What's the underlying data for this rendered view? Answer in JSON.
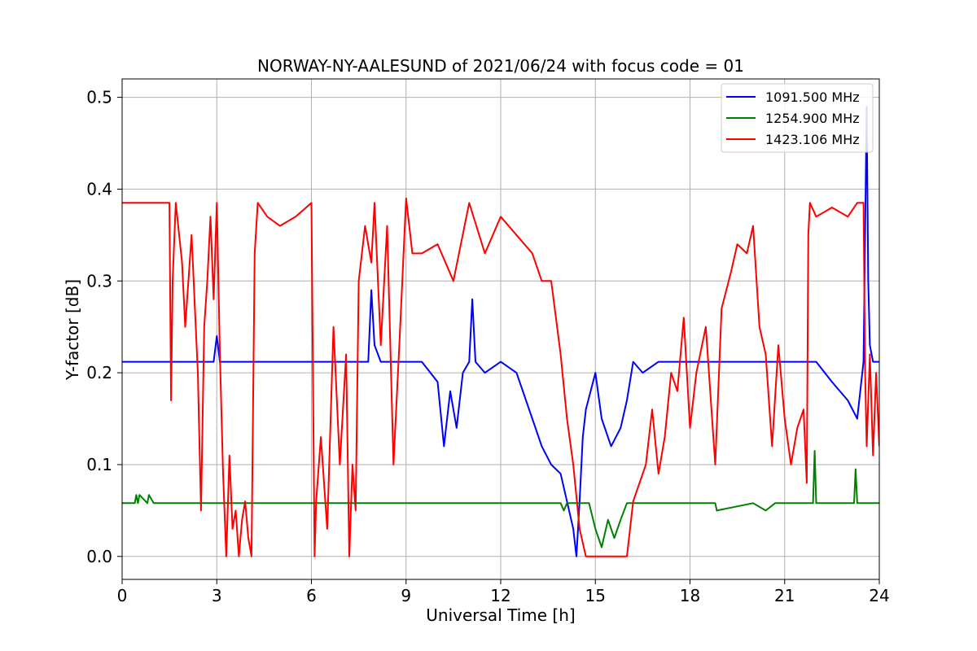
{
  "chart_data": {
    "type": "line",
    "title": "NORWAY-NY-AALESUND of 2021/06/24 with focus code = 01",
    "xlabel": "Universal Time [h]",
    "ylabel": "Y-factor [dB]",
    "xlim": [
      0,
      24
    ],
    "ylim": [
      -0.025,
      0.52
    ],
    "x_ticks": [
      0,
      3,
      6,
      9,
      12,
      15,
      18,
      21,
      24
    ],
    "y_ticks": [
      0.0,
      0.1,
      0.2,
      0.3,
      0.4,
      0.5
    ],
    "x_tick_labels": [
      "0",
      "3",
      "6",
      "9",
      "12",
      "15",
      "18",
      "21",
      "24"
    ],
    "y_tick_labels": [
      "0.0",
      "0.1",
      "0.2",
      "0.3",
      "0.4",
      "0.5"
    ],
    "grid": true,
    "legend_position": "top-right",
    "series": [
      {
        "name": "1091.500 MHz",
        "color": "#0000ff",
        "x": [
          0,
          0.4,
          0.5,
          1.0,
          1.8,
          2.5,
          2.9,
          3.0,
          3.1,
          3.2,
          4.0,
          6.0,
          7.5,
          7.8,
          7.9,
          8.0,
          8.2,
          9.0,
          9.5,
          10.0,
          10.2,
          10.4,
          10.6,
          10.8,
          11.0,
          11.1,
          11.2,
          11.5,
          12.0,
          12.5,
          13.0,
          13.3,
          13.6,
          13.9,
          14.1,
          14.3,
          14.4,
          14.5,
          14.6,
          14.7,
          15.0,
          15.2,
          15.5,
          15.8,
          16.0,
          16.2,
          16.5,
          17.0,
          17.5,
          18.0,
          19.0,
          20.0,
          21.0,
          22.0,
          22.5,
          23.0,
          23.3,
          23.5,
          23.6,
          23.65,
          23.7,
          23.8,
          24.0
        ],
        "y": [
          0.212,
          0.212,
          0.212,
          0.212,
          0.212,
          0.212,
          0.212,
          0.24,
          0.212,
          0.212,
          0.212,
          0.212,
          0.212,
          0.212,
          0.29,
          0.23,
          0.212,
          0.212,
          0.212,
          0.19,
          0.12,
          0.18,
          0.14,
          0.2,
          0.212,
          0.28,
          0.212,
          0.2,
          0.212,
          0.2,
          0.15,
          0.12,
          0.1,
          0.09,
          0.06,
          0.03,
          0.0,
          0.06,
          0.13,
          0.16,
          0.2,
          0.15,
          0.12,
          0.14,
          0.17,
          0.212,
          0.2,
          0.212,
          0.212,
          0.212,
          0.212,
          0.212,
          0.212,
          0.212,
          0.19,
          0.17,
          0.15,
          0.212,
          0.49,
          0.3,
          0.23,
          0.212,
          0.212
        ]
      },
      {
        "name": "1254.900 MHz",
        "color": "#008000",
        "x": [
          0,
          0.4,
          0.45,
          0.5,
          0.55,
          0.8,
          0.85,
          1.0,
          2.0,
          3.0,
          6.0,
          9.0,
          12.0,
          13.9,
          14.0,
          14.1,
          14.8,
          15.0,
          15.2,
          15.4,
          15.6,
          15.8,
          16.0,
          16.1,
          16.2,
          17.0,
          18.8,
          18.85,
          20.0,
          20.4,
          20.7,
          21.0,
          21.9,
          21.95,
          22.0,
          23.2,
          23.25,
          23.3,
          24.0
        ],
        "y": [
          0.058,
          0.058,
          0.067,
          0.058,
          0.067,
          0.058,
          0.067,
          0.058,
          0.058,
          0.058,
          0.058,
          0.058,
          0.058,
          0.058,
          0.05,
          0.058,
          0.058,
          0.03,
          0.01,
          0.04,
          0.02,
          0.04,
          0.058,
          0.058,
          0.058,
          0.058,
          0.058,
          0.05,
          0.058,
          0.05,
          0.058,
          0.058,
          0.058,
          0.115,
          0.058,
          0.058,
          0.095,
          0.058,
          0.058
        ]
      },
      {
        "name": "1423.106 MHz",
        "color": "#ff0000",
        "x": [
          0,
          1.5,
          1.55,
          1.6,
          1.7,
          1.9,
          2.0,
          2.2,
          2.4,
          2.5,
          2.6,
          2.7,
          2.8,
          2.9,
          3.0,
          3.1,
          3.2,
          3.3,
          3.4,
          3.5,
          3.6,
          3.7,
          3.8,
          3.9,
          4.0,
          4.1,
          4.2,
          4.3,
          4.6,
          5.0,
          5.5,
          6.0,
          6.1,
          6.15,
          6.3,
          6.5,
          6.7,
          6.9,
          7.1,
          7.2,
          7.3,
          7.4,
          7.5,
          7.7,
          7.9,
          8.0,
          8.2,
          8.4,
          8.6,
          8.8,
          9.0,
          9.2,
          9.5,
          10.0,
          10.5,
          11.0,
          11.5,
          12.0,
          12.5,
          13.0,
          13.3,
          13.6,
          13.9,
          14.1,
          14.3,
          14.5,
          14.7,
          14.8,
          15.0,
          15.3,
          15.6,
          15.9,
          16.0,
          16.2,
          16.4,
          16.6,
          16.8,
          17.0,
          17.2,
          17.4,
          17.6,
          17.8,
          18.0,
          18.2,
          18.5,
          18.8,
          19.0,
          19.3,
          19.5,
          19.8,
          20.0,
          20.2,
          20.4,
          20.6,
          20.8,
          21.0,
          21.2,
          21.4,
          21.6,
          21.7,
          21.75,
          21.8,
          22.0,
          22.5,
          23.0,
          23.3,
          23.5,
          23.55,
          23.6,
          23.7,
          23.8,
          23.9,
          24.0
        ],
        "y": [
          0.385,
          0.385,
          0.17,
          0.3,
          0.385,
          0.32,
          0.25,
          0.35,
          0.2,
          0.05,
          0.25,
          0.3,
          0.37,
          0.28,
          0.385,
          0.22,
          0.09,
          0.0,
          0.11,
          0.03,
          0.05,
          0.0,
          0.04,
          0.06,
          0.02,
          0.0,
          0.33,
          0.385,
          0.37,
          0.36,
          0.37,
          0.385,
          0.0,
          0.06,
          0.13,
          0.03,
          0.25,
          0.1,
          0.22,
          0.0,
          0.1,
          0.05,
          0.3,
          0.36,
          0.32,
          0.385,
          0.23,
          0.36,
          0.1,
          0.24,
          0.39,
          0.33,
          0.33,
          0.34,
          0.3,
          0.385,
          0.33,
          0.37,
          0.35,
          0.33,
          0.3,
          0.3,
          0.22,
          0.15,
          0.1,
          0.03,
          0.0,
          0.0,
          0.0,
          0.0,
          0.0,
          0.0,
          0.0,
          0.06,
          0.08,
          0.1,
          0.16,
          0.09,
          0.13,
          0.2,
          0.18,
          0.26,
          0.14,
          0.2,
          0.25,
          0.1,
          0.27,
          0.31,
          0.34,
          0.33,
          0.36,
          0.25,
          0.22,
          0.12,
          0.23,
          0.15,
          0.1,
          0.14,
          0.16,
          0.08,
          0.35,
          0.385,
          0.37,
          0.38,
          0.37,
          0.385,
          0.385,
          0.2,
          0.12,
          0.22,
          0.11,
          0.2,
          0.12
        ]
      }
    ]
  }
}
